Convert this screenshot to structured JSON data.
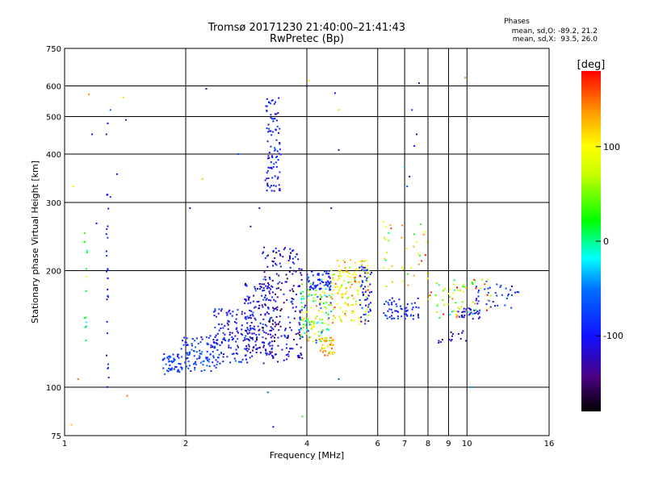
{
  "header": {
    "title_line1": "Tromsø 20171230 21:40:00–21:41:43",
    "title_line2": "RwPretec (Bp)",
    "stats_title": "Phases",
    "stats_o": "mean, sd,O: -89.2, 21.2",
    "stats_x": "mean, sd,X:  93.5, 26.0"
  },
  "colorbar": {
    "unit": "[deg]",
    "ticks": [
      "100",
      "0",
      "-100"
    ],
    "tick_values": [
      100,
      0,
      -100
    ],
    "range": [
      -180,
      180
    ]
  },
  "colors": {
    "grid": "#000000",
    "frame": "#000000"
  },
  "chart_data": {
    "type": "scatter",
    "xlabel": "Frequency [MHz]",
    "ylabel": "Stationary phase Virtual Height [km]",
    "x_scale": "log",
    "y_scale": "log",
    "xlim": [
      1,
      16
    ],
    "ylim": [
      75,
      750
    ],
    "x_ticks": [
      1,
      2,
      4,
      6,
      8,
      10,
      16
    ],
    "x_minor_ticks": [
      7,
      9
    ],
    "y_ticks": [
      75,
      100,
      200,
      300,
      400,
      500,
      600,
      750
    ],
    "grid": true,
    "clusters": [
      {
        "x_range": [
          1.75,
          1.95
        ],
        "y_range": [
          108,
          122
        ],
        "n": 45,
        "phase_mean": -85,
        "phase_sd": 15
      },
      {
        "x_range": [
          1.95,
          2.4
        ],
        "y_range": [
          110,
          135
        ],
        "n": 90,
        "phase_mean": -80,
        "phase_sd": 18
      },
      {
        "x_range": [
          2.3,
          2.9
        ],
        "y_range": [
          115,
          160
        ],
        "n": 140,
        "phase_mean": -95,
        "phase_sd": 20
      },
      {
        "x_range": [
          2.8,
          3.3
        ],
        "y_range": [
          120,
          185
        ],
        "n": 140,
        "phase_mean": -110,
        "phase_sd": 22
      },
      {
        "x_range": [
          3.1,
          3.9
        ],
        "y_range": [
          115,
          230
        ],
        "n": 220,
        "phase_mean": -120,
        "phase_sd": 25
      },
      {
        "x_range": [
          3.15,
          3.45
        ],
        "y_range": [
          320,
          560
        ],
        "n": 90,
        "phase_mean": -100,
        "phase_sd": 15
      },
      {
        "x_range": [
          3.85,
          4.6
        ],
        "y_range": [
          130,
          190
        ],
        "n": 130,
        "phase_mean": 30,
        "phase_sd": 60
      },
      {
        "x_range": [
          4.0,
          4.6
        ],
        "y_range": [
          178,
          200
        ],
        "n": 60,
        "phase_mean": -90,
        "phase_sd": 15
      },
      {
        "x_range": [
          4.3,
          4.7
        ],
        "y_range": [
          120,
          135
        ],
        "n": 40,
        "phase_mean": 130,
        "phase_sd": 20
      },
      {
        "x_range": [
          4.6,
          5.7
        ],
        "y_range": [
          145,
          215
        ],
        "n": 150,
        "phase_mean": 100,
        "phase_sd": 30
      },
      {
        "x_range": [
          5.4,
          5.8
        ],
        "y_range": [
          145,
          205
        ],
        "n": 50,
        "phase_mean": -90,
        "phase_sd": 20
      },
      {
        "x_range": [
          6.2,
          7.6
        ],
        "y_range": [
          150,
          170
        ],
        "n": 60,
        "phase_mean": -90,
        "phase_sd": 15
      },
      {
        "x_range": [
          6.2,
          8.0
        ],
        "y_range": [
          180,
          270
        ],
        "n": 40,
        "phase_mean": 90,
        "phase_sd": 40
      },
      {
        "x_range": [
          8.0,
          11.5
        ],
        "y_range": [
          150,
          190
        ],
        "n": 70,
        "phase_mean": 60,
        "phase_sd": 60
      },
      {
        "x_range": [
          9.5,
          10.8
        ],
        "y_range": [
          150,
          160
        ],
        "n": 30,
        "phase_mean": -110,
        "phase_sd": 15
      },
      {
        "x_range": [
          10.5,
          13.5
        ],
        "y_range": [
          160,
          185
        ],
        "n": 35,
        "phase_mean": -85,
        "phase_sd": 15
      },
      {
        "x_range": [
          8.5,
          10.0
        ],
        "y_range": [
          130,
          140
        ],
        "n": 15,
        "phase_mean": -130,
        "phase_sd": 15
      },
      {
        "x_range": [
          1.27,
          1.29
        ],
        "y_range": [
          100,
          320
        ],
        "n": 25,
        "phase_mean": -100,
        "phase_sd": 15
      },
      {
        "x_range": [
          1.12,
          1.14
        ],
        "y_range": [
          130,
          260
        ],
        "n": 15,
        "phase_mean": 20,
        "phase_sd": 30
      }
    ],
    "scattered_points": [
      [
        1.15,
        570,
        140
      ],
      [
        1.17,
        450,
        -110
      ],
      [
        1.27,
        450,
        -120
      ],
      [
        1.28,
        480,
        -110
      ],
      [
        1.3,
        520,
        -60
      ],
      [
        1.3,
        310,
        -90
      ],
      [
        1.35,
        355,
        -110
      ],
      [
        1.4,
        560,
        110
      ],
      [
        1.42,
        490,
        -120
      ],
      [
        1.2,
        265,
        -100
      ],
      [
        1.05,
        330,
        110
      ],
      [
        1.04,
        80,
        120
      ],
      [
        2.25,
        590,
        -110
      ],
      [
        2.2,
        345,
        120
      ],
      [
        2.05,
        290,
        -110
      ],
      [
        2.7,
        400,
        -70
      ],
      [
        2.9,
        260,
        -120
      ],
      [
        3.05,
        290,
        -110
      ],
      [
        3.2,
        97,
        -60
      ],
      [
        3.3,
        79,
        -100
      ],
      [
        3.9,
        84,
        30
      ],
      [
        4.0,
        600,
        -120
      ],
      [
        4.05,
        620,
        110
      ],
      [
        4.7,
        575,
        -100
      ],
      [
        4.8,
        520,
        120
      ],
      [
        4.8,
        410,
        -110
      ],
      [
        4.6,
        290,
        -130
      ],
      [
        4.8,
        105,
        -60
      ],
      [
        7.0,
        370,
        -40
      ],
      [
        7.3,
        520,
        -80
      ],
      [
        7.4,
        420,
        -110
      ],
      [
        7.1,
        330,
        -70
      ],
      [
        7.5,
        450,
        -130
      ],
      [
        7.6,
        610,
        -120
      ],
      [
        9.9,
        630,
        140
      ],
      [
        10.3,
        100,
        -40
      ],
      [
        7.2,
        350,
        -130
      ],
      [
        1.43,
        95,
        150
      ],
      [
        1.08,
        105,
        150
      ]
    ],
    "phase_encoding": "colour from colorbar, -180 to 180 deg"
  }
}
